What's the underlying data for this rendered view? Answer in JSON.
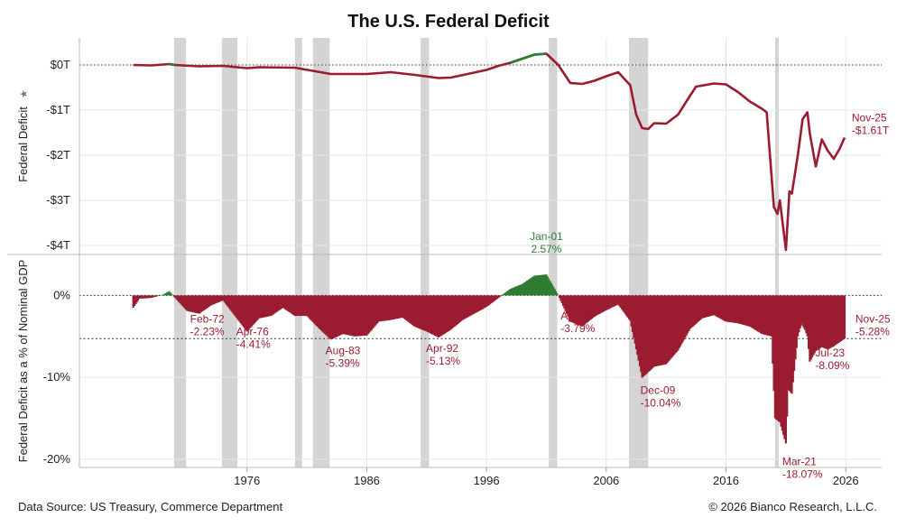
{
  "title": "The U.S. Federal Deficit",
  "footer": {
    "source": "Data Source: US Treasury, Commerce Department",
    "copyright": "© 2026 Bianco Research, L.L.C."
  },
  "colors": {
    "deficit": "#9b1b30",
    "surplus": "#2e7d32",
    "recession": "#d4d4d4",
    "grid": "#e6e6e6"
  },
  "chart_data": [
    {
      "type": "line",
      "ylabel": "Federal Deficit",
      "ylabel_icon": "pin-icon",
      "unit": "trillions of USD",
      "yticks": [
        0,
        -1,
        -2,
        -3,
        -4
      ],
      "ytick_labels": [
        "$0T",
        "-$1T",
        "-$2T",
        "-$3T",
        "-$4T"
      ],
      "ylim": [
        -4.2,
        0.6
      ],
      "zero_reference_line": true,
      "series": [
        {
          "x": [
            1966.5,
            1968,
            1969.5,
            1970,
            1972,
            1974,
            1976,
            1977,
            1980,
            1983,
            1986,
            1988,
            1990,
            1992,
            1993,
            1996,
            1997,
            1998,
            2000,
            2001,
            2002,
            2003,
            2004,
            2005,
            2006,
            2007,
            2008,
            2008.5,
            2009,
            2009.5,
            2010,
            2011,
            2012,
            2013,
            2013.5,
            2015,
            2016,
            2017,
            2018,
            2019,
            2019.4,
            2020,
            2020.3,
            2020.5,
            2021,
            2021.3,
            2021.5,
            2022,
            2022.4,
            2022.8,
            2023,
            2023.5,
            2024,
            2024.5,
            2025,
            2025.5,
            2025.9
          ],
          "y": [
            0.0,
            -0.01,
            0.02,
            0.0,
            -0.03,
            -0.02,
            -0.07,
            -0.05,
            -0.06,
            -0.2,
            -0.2,
            -0.16,
            -0.22,
            -0.29,
            -0.28,
            -0.11,
            -0.02,
            0.05,
            0.23,
            0.25,
            0.0,
            -0.4,
            -0.42,
            -0.35,
            -0.25,
            -0.16,
            -0.45,
            -1.1,
            -1.4,
            -1.42,
            -1.29,
            -1.3,
            -1.1,
            -0.68,
            -0.48,
            -0.41,
            -0.43,
            -0.6,
            -0.81,
            -0.97,
            -1.05,
            -3.15,
            -3.3,
            -3.0,
            -4.1,
            -2.8,
            -2.85,
            -2.0,
            -1.2,
            -1.05,
            -1.52,
            -2.25,
            -1.65,
            -1.9,
            -2.08,
            -1.85,
            -1.61
          ]
        }
      ],
      "surplus_range": [
        [
          1969.2,
          1970.1
        ],
        [
          1998.0,
          2001.6
        ]
      ],
      "annotations": [
        {
          "x": 2025.9,
          "y": -1.61,
          "label": "Nov-25",
          "value": "-$1.61T"
        }
      ]
    },
    {
      "type": "area",
      "ylabel": "Federal Deficit as a % of Nominal GDP",
      "unit": "percent of GDP",
      "yticks": [
        0,
        -10,
        -20
      ],
      "ytick_labels": [
        "0%",
        "-10%",
        "-20%"
      ],
      "ylim": [
        -21,
        5
      ],
      "zero_reference_line": true,
      "current_reference_line": -5.28,
      "series": [
        {
          "x": [
            1966.5,
            1967,
            1968,
            1969,
            1969.5,
            1970,
            1971,
            1972,
            1973,
            1974,
            1975,
            1976,
            1977,
            1978,
            1979,
            1980,
            1981,
            1982,
            1983,
            1984,
            1985,
            1986,
            1987,
            1988,
            1989,
            1990,
            1991,
            1992,
            1993,
            1994,
            1995,
            1996,
            1997,
            1998,
            1999,
            2000,
            2001,
            2002,
            2003,
            2004,
            2005,
            2006,
            2007,
            2008,
            2009,
            2010,
            2011,
            2012,
            2013,
            2014,
            2015,
            2016,
            2017,
            2018,
            2019,
            2019.8,
            2020.1,
            2020.5,
            2021,
            2021.2,
            2021.5,
            2022,
            2022.3,
            2022.6,
            2022.8,
            2023,
            2023.5,
            2024,
            2024.5,
            2025,
            2025.9
          ],
          "y": [
            -1.5,
            -0.4,
            -0.3,
            0.1,
            0.5,
            -0.3,
            -1.9,
            -2.23,
            -1.2,
            -0.6,
            -2.5,
            -4.41,
            -2.8,
            -2.5,
            -1.5,
            -2.5,
            -2.5,
            -4.0,
            -5.39,
            -4.7,
            -5.0,
            -4.9,
            -3.2,
            -3.0,
            -2.7,
            -3.8,
            -4.4,
            -5.13,
            -4.2,
            -3.0,
            -2.2,
            -1.4,
            -0.3,
            0.8,
            1.4,
            2.4,
            2.57,
            0.0,
            -3.2,
            -3.79,
            -2.6,
            -1.8,
            -1.1,
            -3.1,
            -10.04,
            -8.7,
            -8.4,
            -6.7,
            -4.1,
            -2.8,
            -2.4,
            -3.2,
            -3.4,
            -3.8,
            -4.7,
            -5.0,
            -15.0,
            -15.5,
            -18.07,
            -11.5,
            -12.0,
            -5.0,
            -3.5,
            -4.2,
            -5.0,
            -8.09,
            -6.8,
            -6.3,
            -6.6,
            -6.2,
            -5.28
          ]
        }
      ],
      "annotations": [
        {
          "x": 1972,
          "y": -2.23,
          "label": "Feb-72",
          "value": "-2.23%"
        },
        {
          "x": 1976,
          "y": -4.41,
          "label": "Apr-76",
          "value": "-4.41%"
        },
        {
          "x": 1983,
          "y": -5.39,
          "label": "Aug-83",
          "value": "-5.39%"
        },
        {
          "x": 1992,
          "y": -5.13,
          "label": "Apr-92",
          "value": "-5.13%"
        },
        {
          "x": 2001,
          "y": 2.57,
          "label": "Jan-01",
          "value": "2.57%"
        },
        {
          "x": 2004,
          "y": -3.79,
          "label": "Apr-04",
          "value": "-3.79%"
        },
        {
          "x": 2009,
          "y": -10.04,
          "label": "Dec-09",
          "value": "-10.04%"
        },
        {
          "x": 2021,
          "y": -18.07,
          "label": "Mar-21",
          "value": "-18.07%"
        },
        {
          "x": 2023,
          "y": -8.09,
          "label": "Jul-23",
          "value": "-8.09%"
        },
        {
          "x": 2025.9,
          "y": -5.28,
          "label": "Nov-25",
          "value": "-5.28%"
        }
      ]
    }
  ],
  "x_axis": {
    "xlim": [
      1962,
      2029
    ],
    "ticks": [
      1976,
      1986,
      1996,
      2006,
      2016,
      2026
    ],
    "tick_labels": [
      "1976",
      "1986",
      "1996",
      "2006",
      "2016",
      "2026"
    ]
  },
  "recessions": [
    [
      1969.9,
      1970.9
    ],
    [
      1973.9,
      1975.2
    ],
    [
      1980.0,
      1980.6
    ],
    [
      1981.5,
      1982.9
    ],
    [
      1990.5,
      1991.2
    ],
    [
      2001.2,
      2001.9
    ],
    [
      2007.9,
      2009.5
    ],
    [
      2020.1,
      2020.4
    ]
  ]
}
